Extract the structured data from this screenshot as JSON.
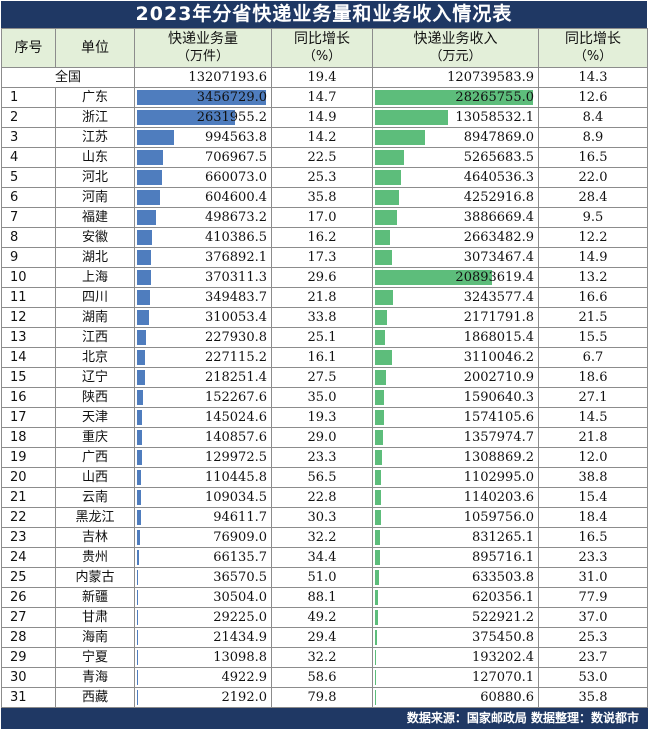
{
  "title": "2023年分省快递业务量和业务收入情况表",
  "headers": {
    "rank": "序号",
    "unit": "单位",
    "volume": "快递业务量",
    "volume_unit": "（万件）",
    "volume_growth": "同比增长",
    "volume_growth_unit": "（%）",
    "revenue": "快递业务收入",
    "revenue_unit": "（万元）",
    "revenue_growth": "同比增长",
    "revenue_growth_unit": "（%）"
  },
  "total": {
    "label": "全国",
    "volume": "13207193.6",
    "volume_growth": "19.4",
    "revenue": "120739583.9",
    "revenue_growth": "14.3"
  },
  "footer": "数据来源：国家邮政局   数据整理：数说都市",
  "colors": {
    "header_bg": "#1f3864",
    "volume_bar": "#4f7dbe",
    "revenue_bar": "#5dbd7b"
  },
  "chart_data": {
    "type": "table",
    "columns": [
      "序号",
      "单位",
      "快递业务量（万件）",
      "同比增长（%）",
      "快递业务收入（万元）",
      "同比增长（%）"
    ],
    "rows": [
      {
        "rank": "1",
        "name": "广东",
        "volume": "3456729.0",
        "volume_growth": "14.7",
        "revenue": "28265755.0",
        "revenue_growth": "12.6"
      },
      {
        "rank": "2",
        "name": "浙江",
        "volume": "2631955.2",
        "volume_growth": "14.9",
        "revenue": "13058532.1",
        "revenue_growth": "8.4"
      },
      {
        "rank": "3",
        "name": "江苏",
        "volume": "994563.8",
        "volume_growth": "14.2",
        "revenue": "8947869.0",
        "revenue_growth": "8.9"
      },
      {
        "rank": "4",
        "name": "山东",
        "volume": "706967.5",
        "volume_growth": "22.5",
        "revenue": "5265683.5",
        "revenue_growth": "16.5"
      },
      {
        "rank": "5",
        "name": "河北",
        "volume": "660073.0",
        "volume_growth": "25.3",
        "revenue": "4640536.3",
        "revenue_growth": "22.0"
      },
      {
        "rank": "6",
        "name": "河南",
        "volume": "604600.4",
        "volume_growth": "35.8",
        "revenue": "4252916.8",
        "revenue_growth": "28.4"
      },
      {
        "rank": "7",
        "name": "福建",
        "volume": "498673.2",
        "volume_growth": "17.0",
        "revenue": "3886669.4",
        "revenue_growth": "9.5"
      },
      {
        "rank": "8",
        "name": "安徽",
        "volume": "410386.5",
        "volume_growth": "16.2",
        "revenue": "2663482.9",
        "revenue_growth": "12.2"
      },
      {
        "rank": "9",
        "name": "湖北",
        "volume": "376892.1",
        "volume_growth": "17.3",
        "revenue": "3073467.4",
        "revenue_growth": "14.9"
      },
      {
        "rank": "10",
        "name": "上海",
        "volume": "370311.3",
        "volume_growth": "29.6",
        "revenue": "20893619.4",
        "revenue_growth": "13.2"
      },
      {
        "rank": "11",
        "name": "四川",
        "volume": "349483.7",
        "volume_growth": "21.8",
        "revenue": "3243577.4",
        "revenue_growth": "16.6"
      },
      {
        "rank": "12",
        "name": "湖南",
        "volume": "310053.4",
        "volume_growth": "33.8",
        "revenue": "2171791.8",
        "revenue_growth": "21.5"
      },
      {
        "rank": "13",
        "name": "江西",
        "volume": "227930.8",
        "volume_growth": "25.1",
        "revenue": "1868015.4",
        "revenue_growth": "15.5"
      },
      {
        "rank": "14",
        "name": "北京",
        "volume": "227115.2",
        "volume_growth": "16.1",
        "revenue": "3110046.2",
        "revenue_growth": "6.7"
      },
      {
        "rank": "15",
        "name": "辽宁",
        "volume": "218251.4",
        "volume_growth": "27.5",
        "revenue": "2002710.9",
        "revenue_growth": "18.6"
      },
      {
        "rank": "16",
        "name": "陕西",
        "volume": "152267.6",
        "volume_growth": "35.0",
        "revenue": "1590640.3",
        "revenue_growth": "27.1"
      },
      {
        "rank": "17",
        "name": "天津",
        "volume": "145024.6",
        "volume_growth": "19.3",
        "revenue": "1574105.6",
        "revenue_growth": "14.5"
      },
      {
        "rank": "18",
        "name": "重庆",
        "volume": "140857.6",
        "volume_growth": "29.0",
        "revenue": "1357974.7",
        "revenue_growth": "21.8"
      },
      {
        "rank": "19",
        "name": "广西",
        "volume": "129972.5",
        "volume_growth": "23.3",
        "revenue": "1308869.2",
        "revenue_growth": "12.0"
      },
      {
        "rank": "20",
        "name": "山西",
        "volume": "110445.8",
        "volume_growth": "56.5",
        "revenue": "1102995.0",
        "revenue_growth": "38.8"
      },
      {
        "rank": "21",
        "name": "云南",
        "volume": "109034.5",
        "volume_growth": "22.8",
        "revenue": "1140203.6",
        "revenue_growth": "15.4"
      },
      {
        "rank": "22",
        "name": "黑龙江",
        "volume": "94611.7",
        "volume_growth": "30.3",
        "revenue": "1059756.0",
        "revenue_growth": "18.4"
      },
      {
        "rank": "23",
        "name": "吉林",
        "volume": "76909.0",
        "volume_growth": "32.2",
        "revenue": "831265.1",
        "revenue_growth": "16.5"
      },
      {
        "rank": "24",
        "name": "贵州",
        "volume": "66135.7",
        "volume_growth": "34.4",
        "revenue": "895716.1",
        "revenue_growth": "23.3"
      },
      {
        "rank": "25",
        "name": "内蒙古",
        "volume": "36570.5",
        "volume_growth": "51.0",
        "revenue": "633503.8",
        "revenue_growth": "31.0"
      },
      {
        "rank": "26",
        "name": "新疆",
        "volume": "30504.0",
        "volume_growth": "88.1",
        "revenue": "620356.1",
        "revenue_growth": "77.9"
      },
      {
        "rank": "27",
        "name": "甘肃",
        "volume": "29225.0",
        "volume_growth": "49.2",
        "revenue": "522921.2",
        "revenue_growth": "37.0"
      },
      {
        "rank": "28",
        "name": "海南",
        "volume": "21434.9",
        "volume_growth": "29.4",
        "revenue": "375450.8",
        "revenue_growth": "25.3"
      },
      {
        "rank": "29",
        "name": "宁夏",
        "volume": "13098.8",
        "volume_growth": "32.2",
        "revenue": "193202.4",
        "revenue_growth": "23.7"
      },
      {
        "rank": "30",
        "name": "青海",
        "volume": "4922.9",
        "volume_growth": "58.6",
        "revenue": "127070.1",
        "revenue_growth": "53.0"
      },
      {
        "rank": "31",
        "name": "西藏",
        "volume": "2192.0",
        "volume_growth": "79.8",
        "revenue": "60880.6",
        "revenue_growth": "35.8"
      }
    ]
  }
}
